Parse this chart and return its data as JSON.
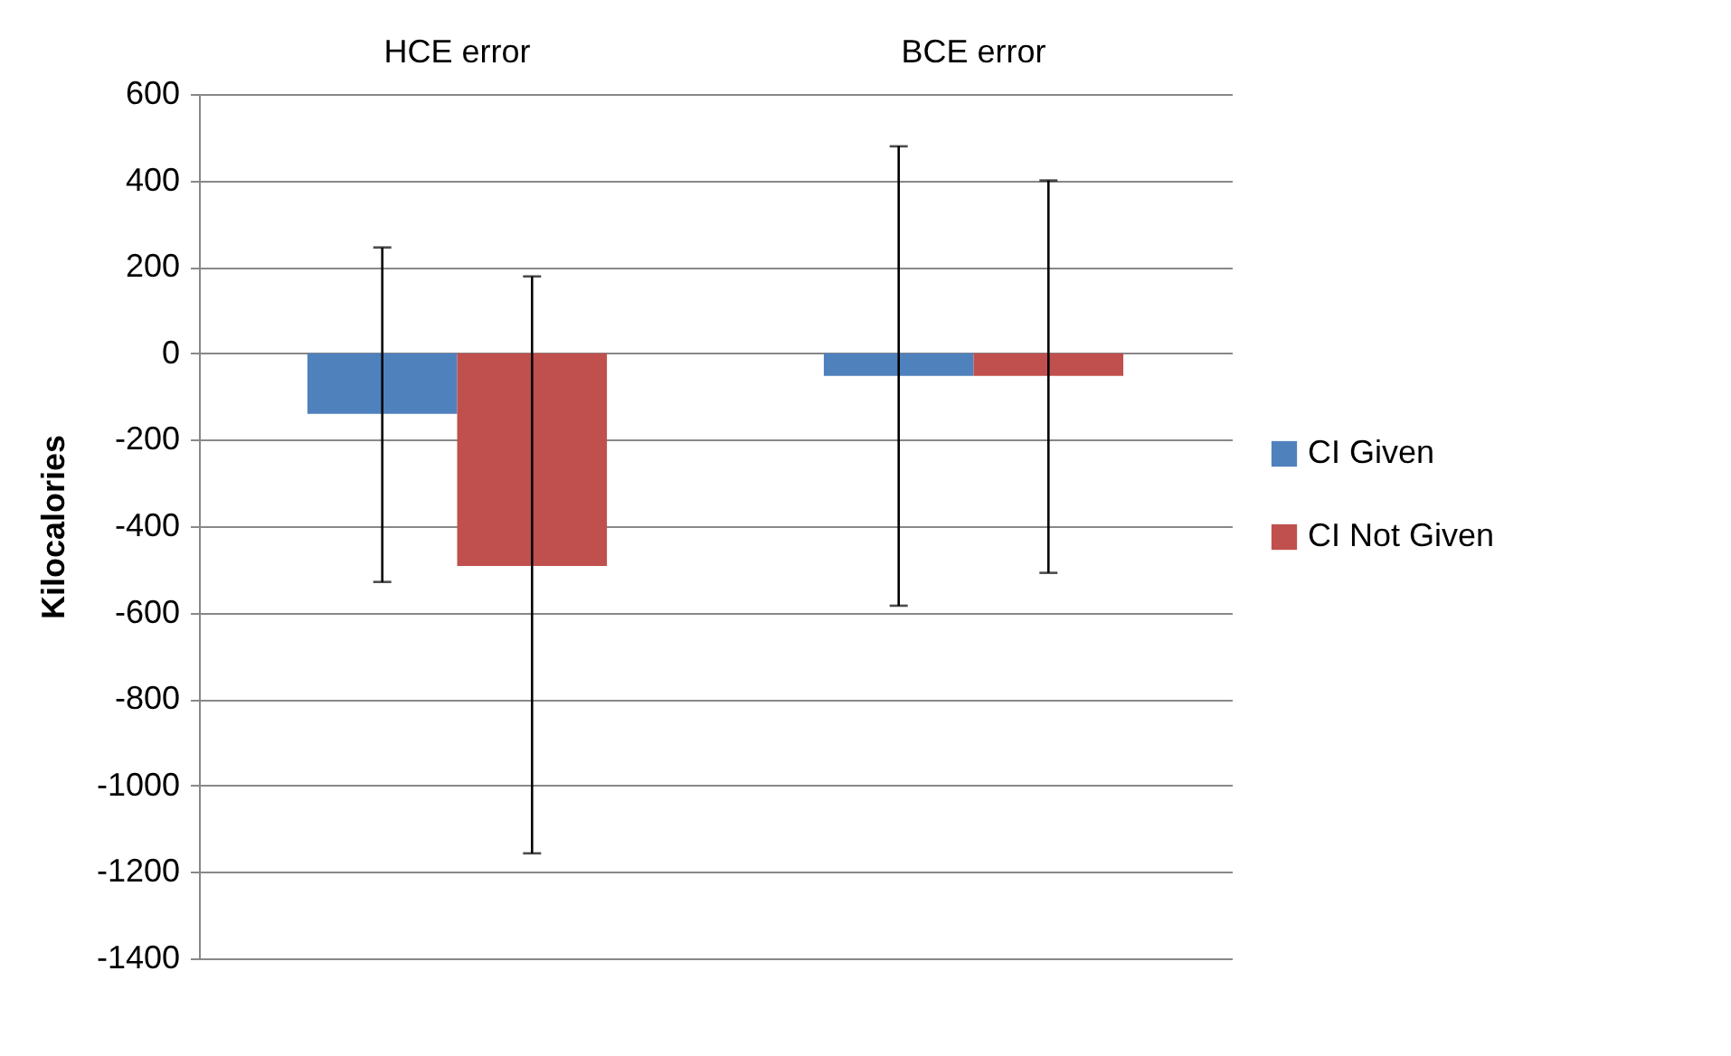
{
  "chart_data": {
    "type": "bar",
    "ylabel": "Kilocalories",
    "categories": [
      "HCE error",
      "BCE error"
    ],
    "series": [
      {
        "name": "CI Given",
        "color": "#4f81bd",
        "values": [
          -140,
          -52
        ],
        "errors": [
          [
            -529,
            245
          ],
          [
            -584,
            479
          ]
        ]
      },
      {
        "name": "CI Not Given",
        "color": "#c0504d",
        "values": [
          -492,
          -52
        ],
        "errors": [
          [
            -1157,
            178
          ],
          [
            -508,
            400
          ]
        ]
      }
    ],
    "ylim": [
      -1400,
      600
    ],
    "yticks": [
      -1400,
      -1200,
      -1000,
      -800,
      -600,
      -400,
      -200,
      0,
      200,
      400,
      600
    ],
    "grid": "y",
    "legend": "right"
  }
}
